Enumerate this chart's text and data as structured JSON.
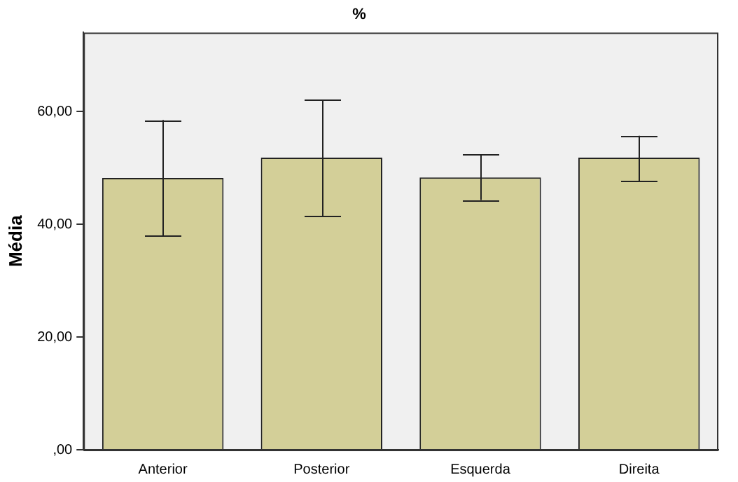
{
  "chart_data": {
    "type": "bar",
    "title": "%",
    "ylabel": "Média",
    "categories": [
      "Anterior",
      "Posterior",
      "Esquerda",
      "Direita"
    ],
    "values": [
      48.2,
      51.8,
      48.3,
      51.8
    ],
    "errors": [
      [
        38.0,
        58.5
      ],
      [
        41.5,
        62.1
      ],
      [
        44.3,
        52.4
      ],
      [
        47.7,
        55.7
      ]
    ],
    "color": "#d3cf98",
    "ylim": [
      0,
      74
    ],
    "yticks": [
      {
        "value": 0,
        "label": ",00"
      },
      {
        "value": 20,
        "label": "20,00"
      },
      {
        "value": 40,
        "label": "40,00"
      },
      {
        "value": 60,
        "label": "60,00"
      }
    ],
    "grid": false,
    "legend": false
  }
}
